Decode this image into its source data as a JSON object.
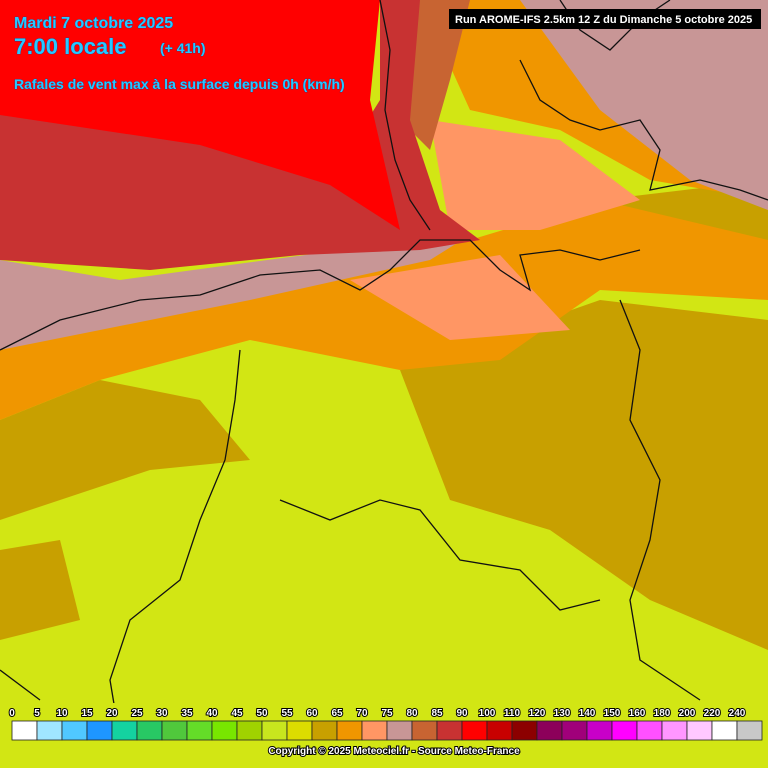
{
  "header": {
    "date": "Mardi 7 octobre 2025",
    "time": "7:00 locale",
    "offset": "(+ 41h)",
    "subtitle": "Rafales de vent max à la surface depuis 0h (km/h)",
    "run": "Run AROME-IFS 2.5km 12 Z du Dimanche 5 octobre 2025"
  },
  "legend": {
    "values": [
      0,
      5,
      10,
      15,
      20,
      25,
      30,
      35,
      40,
      45,
      50,
      55,
      60,
      65,
      70,
      75,
      80,
      85,
      90,
      100,
      110,
      120,
      130,
      140,
      150,
      160,
      180,
      200,
      220,
      240
    ],
    "colors": [
      "#ffffff",
      "#a0e6ff",
      "#50c8ff",
      "#1e96ff",
      "#14d2a0",
      "#28c864",
      "#50c83c",
      "#64dc28",
      "#78e600",
      "#a0d200",
      "#c8e61e",
      "#dcdc00",
      "#c8a000",
      "#f09600",
      "#ff9664",
      "#c89696",
      "#c86432",
      "#c83232",
      "#ff0000",
      "#c80000",
      "#8c0000",
      "#8c005a",
      "#a0007a",
      "#c800c8",
      "#ff00ff",
      "#ff50ff",
      "#ff96ff",
      "#ffc8ff",
      "#ffffff",
      "#c8c8c8"
    ]
  },
  "footer": {
    "copyright": "Copyright © 2025 Meteociel.fr - Source Meteo-France"
  }
}
